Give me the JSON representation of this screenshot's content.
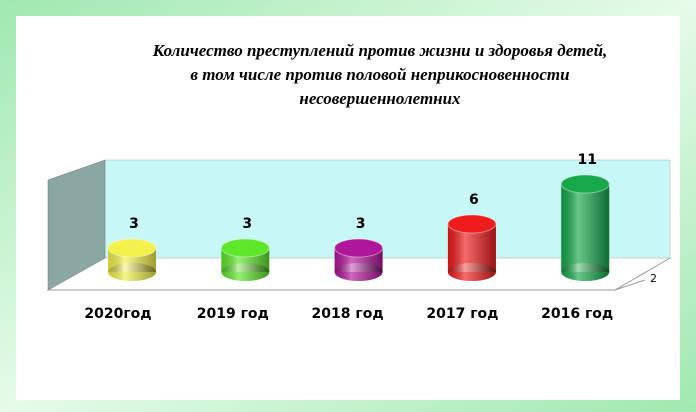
{
  "chart_data": {
    "type": "bar",
    "title": [
      "Количество  преступлений против жизни и здоровья детей,",
      "в том числе против половой неприкосновенности",
      "несовершеннолетних"
    ],
    "categories": [
      "2020год",
      "2019 год",
      "2018 год",
      "2017 год",
      "2016 год"
    ],
    "series": [
      {
        "name": "2",
        "values": [
          3,
          3,
          3,
          6,
          11
        ],
        "colors": [
          "#f2f04a",
          "#5ee62a",
          "#b0169a",
          "#ee1c1c",
          "#16a84a"
        ]
      }
    ]
  }
}
